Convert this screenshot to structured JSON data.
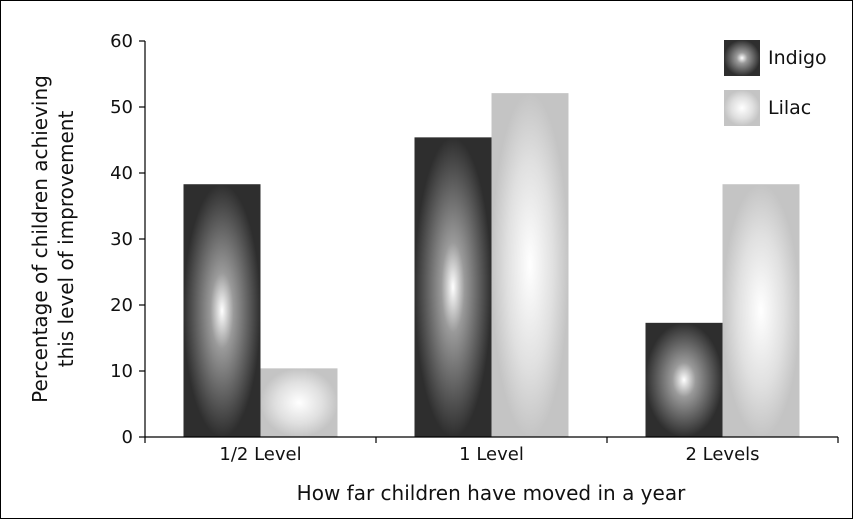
{
  "chart_data": {
    "type": "bar",
    "categories": [
      "1/2 Level",
      "1 Level",
      "2 Levels"
    ],
    "series": [
      {
        "name": "Indigo",
        "values": [
          38.3,
          45.4,
          17.3
        ],
        "color": "#3a3a3a"
      },
      {
        "name": "Lilac",
        "values": [
          10.4,
          52.1,
          38.3
        ],
        "color": "#d0d0d0"
      }
    ],
    "xlabel": "How far children have moved in a year",
    "ylabel_lines": [
      "Percentage of children achieving",
      "this level of improvement"
    ],
    "ylim": [
      0,
      60
    ],
    "yticks": [
      0,
      10,
      20,
      30,
      40,
      50,
      60
    ],
    "grid": false,
    "legend_position": "top-right"
  }
}
